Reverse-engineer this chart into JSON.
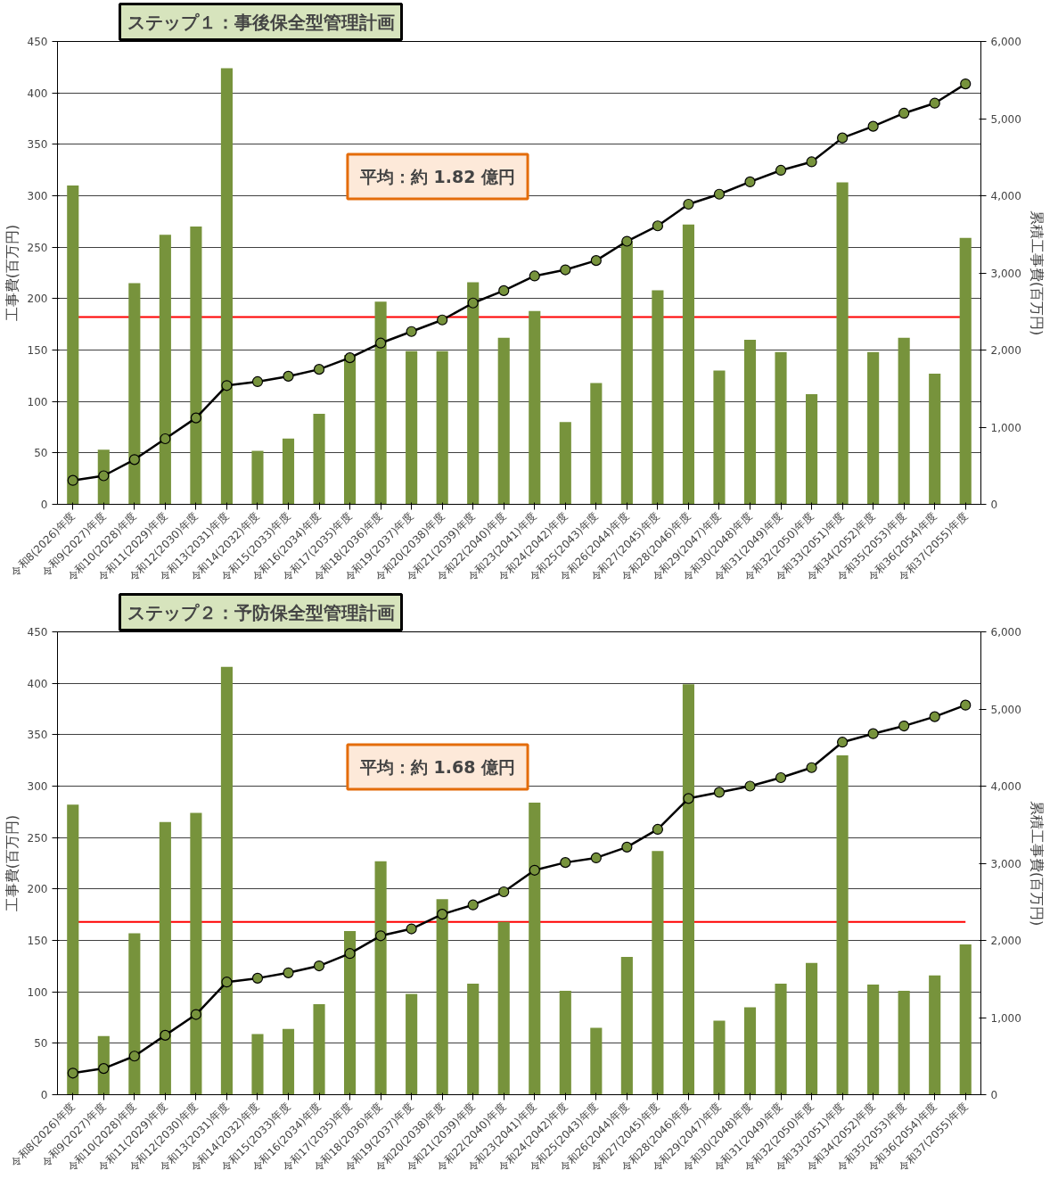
{
  "chart_data": [
    {
      "type": "bar",
      "title": "ステップ１：事後保全型管理計画",
      "ylabel": "工事費(百万円)",
      "y2label": "累積工事費(百万円)",
      "categories": [
        "令和8(2026)年度",
        "令和9(2027)年度",
        "令和10(2028)年度",
        "令和11(2029)年度",
        "令和12(2030)年度",
        "令和13(2031)年度",
        "令和14(2032)年度",
        "令和15(2033)年度",
        "令和16(2034)年度",
        "令和17(2035)年度",
        "令和18(2036)年度",
        "令和19(2037)年度",
        "令和20(2038)年度",
        "令和21(2039)年度",
        "令和22(2040)年度",
        "令和23(2041)年度",
        "令和24(2042)年度",
        "令和25(2043)年度",
        "令和26(2044)年度",
        "令和27(2045)年度",
        "令和28(2046)年度",
        "令和29(2047)年度",
        "令和30(2048)年度",
        "令和31(2049)年度",
        "令和32(2050)年度",
        "令和33(2051)年度",
        "令和34(2052)年度",
        "令和35(2053)年度",
        "令和36(2054)年度",
        "令和37(2055)年度"
      ],
      "series": [
        {
          "color": "#77933c",
          "values": [
            310,
            53,
            215,
            262,
            270,
            424,
            52,
            64,
            88,
            145,
            197,
            149,
            149,
            216,
            162,
            188,
            80,
            118,
            256,
            208,
            272,
            130,
            160,
            148,
            107,
            313,
            148,
            162,
            127,
            259
          ]
        },
        {
          "type": "line",
          "axis": "y2",
          "color": "#000000",
          "values": [
            310,
            370,
            580,
            850,
            1120,
            1540,
            1590,
            1660,
            1750,
            1900,
            2090,
            2240,
            2390,
            2610,
            2770,
            2960,
            3040,
            3160,
            3410,
            3610,
            3890,
            4020,
            4180,
            4330,
            4440,
            4750,
            4900,
            5070,
            5200,
            5450
          ]
        }
      ],
      "ylim": [
        0,
        450
      ],
      "yticks": [
        0,
        50,
        100,
        150,
        200,
        250,
        300,
        350,
        400,
        450
      ],
      "y2lim": [
        0,
        6000
      ],
      "y2ticks": [
        0,
        {
          "value": 1000,
          "label": "1,000"
        },
        {
          "value": 2000,
          "label": "2,000"
        },
        {
          "value": 3000,
          "label": "3,000"
        },
        {
          "value": 4000,
          "label": "4,000"
        },
        {
          "value": 5000,
          "label": "5,000"
        },
        {
          "value": 6000,
          "label": "6,000"
        }
      ],
      "ref_lines": [
        {
          "axis": "y",
          "value": 182,
          "color": "#ff0000"
        }
      ],
      "annotations": [
        "平均：約 1.82 億円"
      ],
      "grid": "y",
      "marker": "circle"
    },
    {
      "type": "bar",
      "title": "ステップ２：予防保全型管理計画",
      "ylabel": "工事費(百万円)",
      "y2label": "累積工事費(百万円)",
      "categories": [
        "令和8(2026)年度",
        "令和9(2027)年度",
        "令和10(2028)年度",
        "令和11(2029)年度",
        "令和12(2030)年度",
        "令和13(2031)年度",
        "令和14(2032)年度",
        "令和15(2033)年度",
        "令和16(2034)年度",
        "令和17(2035)年度",
        "令和18(2036)年度",
        "令和19(2037)年度",
        "令和20(2038)年度",
        "令和21(2039)年度",
        "令和22(2040)年度",
        "令和23(2041)年度",
        "令和24(2042)年度",
        "令和25(2043)年度",
        "令和26(2044)年度",
        "令和27(2045)年度",
        "令和28(2046)年度",
        "令和29(2047)年度",
        "令和30(2048)年度",
        "令和31(2049)年度",
        "令和32(2050)年度",
        "令和33(2051)年度",
        "令和34(2052)年度",
        "令和35(2053)年度",
        "令和36(2054)年度",
        "令和37(2055)年度"
      ],
      "series": [
        {
          "color": "#77933c",
          "values": [
            282,
            57,
            157,
            265,
            274,
            416,
            59,
            64,
            88,
            159,
            227,
            98,
            190,
            108,
            168,
            284,
            101,
            65,
            134,
            237,
            399,
            72,
            85,
            108,
            128,
            330,
            107,
            101,
            116,
            146
          ]
        },
        {
          "type": "line",
          "axis": "y2",
          "color": "#000000",
          "values": [
            280,
            340,
            500,
            770,
            1040,
            1460,
            1510,
            1580,
            1670,
            1830,
            2060,
            2150,
            2340,
            2460,
            2630,
            2910,
            3010,
            3070,
            3210,
            3440,
            3840,
            3920,
            4000,
            4110,
            4240,
            4570,
            4680,
            4780,
            4900,
            5050
          ]
        }
      ],
      "ylim": [
        0,
        450
      ],
      "yticks": [
        0,
        50,
        100,
        150,
        200,
        250,
        300,
        350,
        400,
        450
      ],
      "y2lim": [
        0,
        6000
      ],
      "y2ticks": [
        0,
        {
          "value": 1000,
          "label": "1,000"
        },
        {
          "value": 2000,
          "label": "2,000"
        },
        {
          "value": 3000,
          "label": "3,000"
        },
        {
          "value": 4000,
          "label": "4,000"
        },
        {
          "value": 5000,
          "label": "5,000"
        },
        {
          "value": 6000,
          "label": "6,000"
        }
      ],
      "ref_lines": [
        {
          "axis": "y",
          "value": 168,
          "color": "#ff0000"
        }
      ],
      "annotations": [
        "平均：約 1.68 億円"
      ],
      "grid": "y",
      "marker": "circle"
    }
  ]
}
